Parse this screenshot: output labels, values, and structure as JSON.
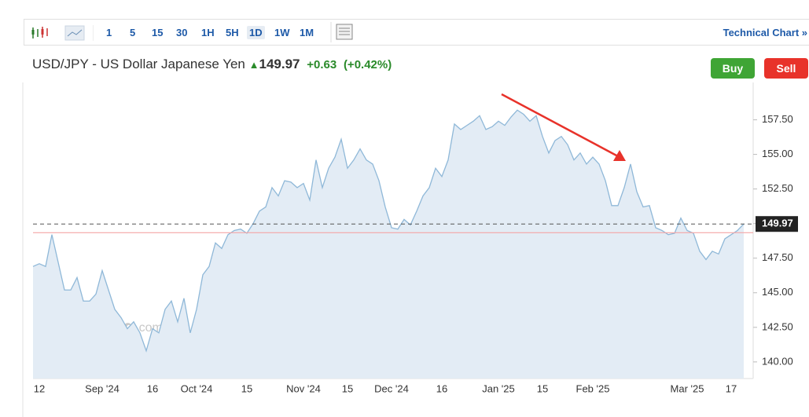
{
  "toolbar": {
    "intervals": [
      "1",
      "5",
      "15",
      "30",
      "1H",
      "5H",
      "1D",
      "1W",
      "1M"
    ],
    "active_interval": "1D",
    "link": "Technical Chart »"
  },
  "header": {
    "symbol": "USD/JPY - US Dollar Japanese Yen",
    "price": "149.97",
    "change": "+0.63",
    "change_percent": "(+0.42%)",
    "buy": "Buy",
    "sell": "Sell"
  },
  "watermark": {
    "brand": "Investing",
    "suffix": ".com"
  },
  "chart_data": {
    "type": "area",
    "color": "#8fb8d8",
    "fill": "#e3ecf5",
    "categories": [
      null,
      "12",
      null,
      null,
      null,
      null,
      null,
      null,
      null,
      null,
      null,
      "Sep '24",
      null,
      null,
      null,
      null,
      null,
      null,
      null,
      "16",
      null,
      null,
      null,
      null,
      null,
      null,
      "Oct '24",
      null,
      null,
      null,
      null,
      null,
      null,
      null,
      "15",
      null,
      null,
      null,
      null,
      null,
      null,
      null,
      null,
      "Nov '24",
      null,
      null,
      null,
      null,
      null,
      null,
      "15",
      null,
      null,
      null,
      null,
      null,
      null,
      "Dec '24",
      null,
      null,
      null,
      null,
      null,
      null,
      null,
      "16",
      null,
      null,
      null,
      null,
      null,
      null,
      null,
      null,
      "Jan '25",
      null,
      null,
      null,
      null,
      null,
      null,
      "15",
      null,
      null,
      null,
      null,
      null,
      null,
      null,
      "Feb '25",
      null,
      null,
      null,
      null,
      null,
      null,
      null,
      null,
      null,
      null,
      null,
      null,
      null,
      null,
      "Mar '25",
      null,
      null,
      null,
      null,
      null,
      null,
      "17",
      null,
      null
    ],
    "values": [
      146.9,
      147.1,
      146.9,
      149.2,
      147.2,
      145.2,
      145.2,
      146.1,
      144.4,
      144.4,
      144.9,
      146.6,
      145.2,
      143.8,
      143.2,
      142.4,
      142.9,
      142.1,
      140.8,
      142.4,
      142.1,
      143.8,
      144.4,
      142.9,
      144.6,
      142.1,
      143.8,
      146.3,
      146.9,
      148.6,
      148.2,
      149.2,
      149.5,
      149.6,
      149.3,
      150.0,
      150.9,
      151.2,
      152.6,
      152.0,
      153.1,
      153.0,
      152.6,
      152.9,
      151.7,
      154.6,
      152.6,
      154.0,
      154.8,
      156.1,
      154.0,
      154.6,
      155.4,
      154.6,
      154.3,
      153.1,
      151.2,
      149.7,
      149.6,
      150.3,
      149.9,
      150.9,
      152.0,
      152.6,
      154.0,
      153.4,
      154.6,
      157.2,
      156.8,
      157.1,
      157.4,
      157.8,
      156.8,
      157.0,
      157.4,
      157.1,
      157.7,
      158.2,
      157.9,
      157.4,
      157.8,
      156.3,
      155.1,
      156.0,
      156.3,
      155.7,
      154.6,
      155.1,
      154.3,
      154.8,
      154.3,
      153.1,
      151.3,
      151.3,
      152.6,
      154.3,
      152.3,
      151.2,
      151.3,
      149.7,
      149.5,
      149.2,
      149.3,
      150.4,
      149.5,
      149.3,
      148.0,
      147.4,
      148.0,
      147.8,
      148.9,
      149.2,
      149.5,
      149.97
    ],
    "ylim": [
      138.8,
      160.2
    ],
    "yticks": [
      {
        "value": 140,
        "label": "140.00"
      },
      {
        "value": 142.5,
        "label": "142.50"
      },
      {
        "value": 145,
        "label": "145.00"
      },
      {
        "value": 147.5,
        "label": "147.50"
      },
      {
        "value": 150,
        "label": "150.00"
      },
      {
        "value": 152.5,
        "label": "152.50"
      },
      {
        "value": 155,
        "label": "155.00"
      },
      {
        "value": 157.5,
        "label": "157.50"
      }
    ],
    "last_value": 149.97,
    "last_color": "#222222",
    "reference_line": 149.34,
    "reference_color": "#f4a6a6",
    "grid": false
  }
}
